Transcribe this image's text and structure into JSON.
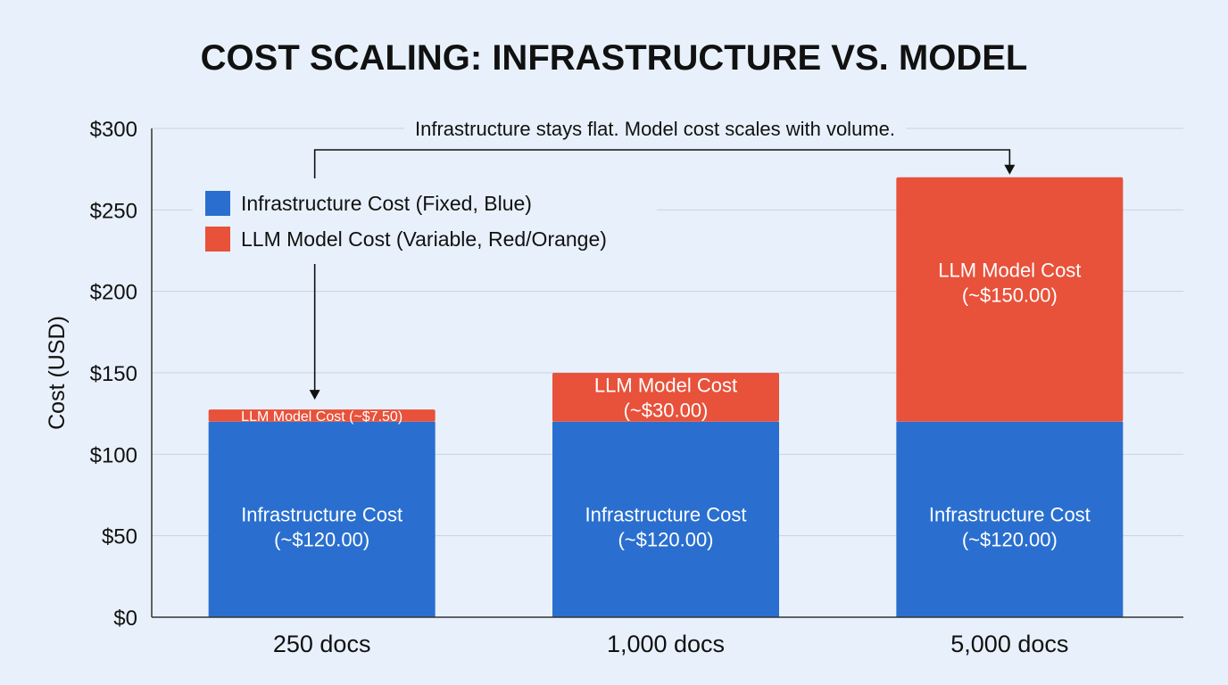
{
  "chart_data": {
    "type": "bar",
    "stacked": true,
    "title": "COST SCALING: INFRASTRUCTURE VS. MODEL",
    "ylabel": "Cost (USD)",
    "xlabel": "",
    "ylim": [
      0,
      300
    ],
    "ytick_labels": [
      "$0",
      "$50",
      "$100",
      "$150",
      "$200",
      "$250",
      "$300"
    ],
    "ytick_values": [
      0,
      50,
      100,
      150,
      200,
      250,
      300
    ],
    "categories": [
      "250 docs",
      "1,000 docs",
      "5,000 docs"
    ],
    "series": [
      {
        "name": "Infrastructure Cost (Fixed, Blue)",
        "color": "#2a6fcf",
        "values": [
          120,
          120,
          120
        ],
        "labels": [
          [
            "Infrastructure Cost",
            "(~$120.00)"
          ],
          [
            "Infrastructure Cost",
            "(~$120.00)"
          ],
          [
            "Infrastructure Cost",
            "(~$120.00)"
          ]
        ]
      },
      {
        "name": "LLM Model Cost (Variable, Red/Orange)",
        "color": "#e8513a",
        "values": [
          7.5,
          30,
          150
        ],
        "labels": [
          [
            "LLM Model Cost (~$7.50)"
          ],
          [
            "LLM Model Cost",
            "(~$30.00)"
          ],
          [
            "LLM Model Cost",
            "(~$150.00)"
          ]
        ]
      }
    ],
    "annotation": "Infrastructure stays flat. Model cost scales with volume.",
    "grid": true,
    "legend_position": "top-left"
  }
}
